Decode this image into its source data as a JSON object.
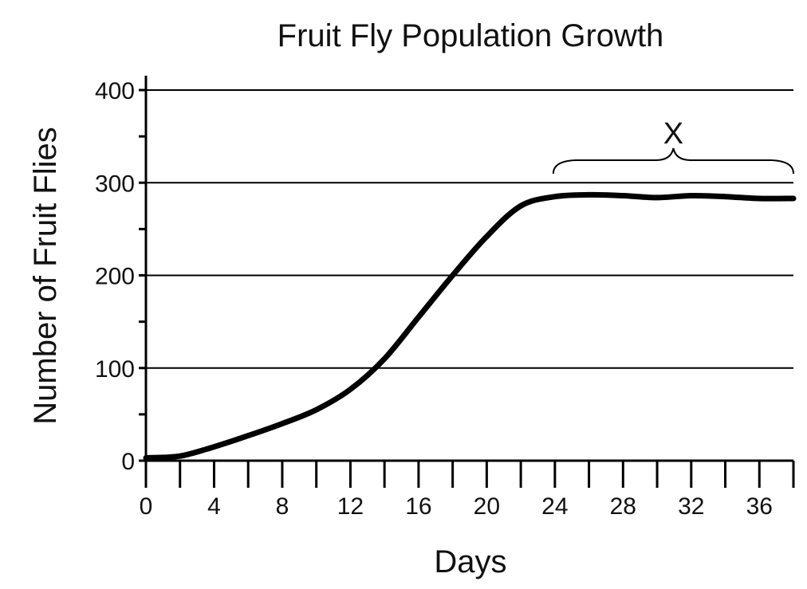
{
  "chart_data": {
    "type": "line",
    "title": "Fruit Fly Population Growth",
    "xlabel": "Days",
    "ylabel": "Number of Fruit Flies",
    "xlim": [
      0,
      38
    ],
    "ylim": [
      0,
      400
    ],
    "x_ticks": [
      0,
      2,
      4,
      6,
      8,
      10,
      12,
      14,
      16,
      18,
      20,
      22,
      24,
      26,
      28,
      30,
      32,
      34,
      36,
      38
    ],
    "x_tick_labels": [
      "0",
      "4",
      "8",
      "12",
      "16",
      "20",
      "24",
      "28",
      "32",
      "36"
    ],
    "x_tick_label_values": [
      0,
      4,
      8,
      12,
      16,
      20,
      24,
      28,
      32,
      36
    ],
    "y_ticks": [
      0,
      50,
      100,
      150,
      200,
      250,
      300,
      350,
      400
    ],
    "y_tick_labels": [
      "0",
      "100",
      "200",
      "300",
      "400"
    ],
    "y_tick_label_values": [
      0,
      100,
      200,
      300,
      400
    ],
    "grid_y": [
      100,
      200,
      300,
      400
    ],
    "series": [
      {
        "x": [
          0,
          2,
          4,
          6,
          8,
          10,
          12,
          14,
          16,
          18,
          20,
          22,
          24,
          26,
          28,
          30,
          32,
          34,
          36,
          38
        ],
        "y": [
          3,
          5,
          15,
          27,
          40,
          55,
          77,
          110,
          155,
          200,
          242,
          275,
          285,
          287,
          286,
          284,
          286,
          285,
          283,
          283
        ]
      }
    ],
    "annotations": [
      {
        "text": "X",
        "x_range": [
          24,
          38
        ]
      }
    ],
    "colors": {
      "line": "#000000",
      "grid": "#000000",
      "text": "#111111"
    }
  }
}
